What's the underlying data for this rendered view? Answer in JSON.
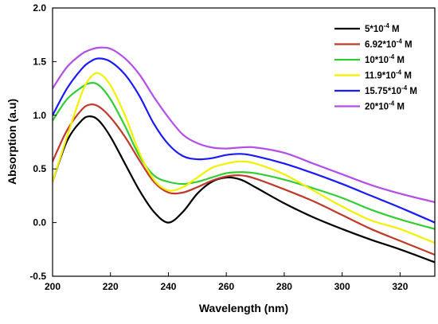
{
  "chart_data": {
    "type": "line",
    "xlabel": "Wavelength (nm)",
    "ylabel": "Absorption (a.u)",
    "xlim": [
      200,
      332
    ],
    "ylim": [
      -0.5,
      2.0
    ],
    "x_ticks": [
      200,
      220,
      240,
      260,
      280,
      300,
      320
    ],
    "y_ticks": [
      -0.5,
      0.0,
      0.5,
      1.0,
      1.5,
      2.0
    ],
    "x_tick_labels": [
      "200",
      "220",
      "240",
      "260",
      "280",
      "300",
      "320"
    ],
    "y_tick_labels": [
      "-0.5",
      "0.0",
      "0.5",
      "1.0",
      "1.5",
      "2.0"
    ],
    "grid": false,
    "legend_position": "top-right",
    "x": [
      200,
      205,
      210,
      213,
      216,
      220,
      225,
      230,
      235,
      240,
      245,
      250,
      255,
      260,
      265,
      270,
      280,
      290,
      300,
      310,
      320,
      332
    ],
    "series": [
      {
        "name_base": "5*10",
        "name_exp": "-4",
        "name_unit": " M",
        "color": "#000000",
        "values": [
          0.38,
          0.76,
          0.95,
          0.99,
          0.95,
          0.8,
          0.55,
          0.3,
          0.1,
          0.0,
          0.1,
          0.27,
          0.38,
          0.42,
          0.4,
          0.33,
          0.18,
          0.05,
          -0.06,
          -0.16,
          -0.25,
          -0.37
        ]
      },
      {
        "name_base": "6.92*10",
        "name_exp": "-4",
        "name_unit": " M",
        "color": "#c0392b",
        "values": [
          0.57,
          0.86,
          1.05,
          1.1,
          1.08,
          0.98,
          0.8,
          0.58,
          0.38,
          0.28,
          0.28,
          0.33,
          0.39,
          0.43,
          0.44,
          0.41,
          0.31,
          0.2,
          0.07,
          -0.06,
          -0.17,
          -0.3
        ]
      },
      {
        "name_base": "10*10",
        "name_exp": "-4",
        "name_unit": " M",
        "color": "#33cc33",
        "values": [
          0.95,
          1.15,
          1.26,
          1.3,
          1.28,
          1.15,
          0.9,
          0.62,
          0.44,
          0.38,
          0.36,
          0.38,
          0.42,
          0.46,
          0.47,
          0.46,
          0.4,
          0.32,
          0.23,
          0.12,
          0.03,
          -0.06
        ]
      },
      {
        "name_base": "11.9*10",
        "name_exp": "-4",
        "name_unit": " M",
        "color": "#f0f000",
        "values": [
          0.38,
          0.8,
          1.2,
          1.35,
          1.39,
          1.28,
          1.0,
          0.65,
          0.4,
          0.3,
          0.33,
          0.42,
          0.51,
          0.55,
          0.57,
          0.55,
          0.45,
          0.3,
          0.15,
          0.02,
          -0.06,
          -0.19
        ]
      },
      {
        "name_base": "15.75*10",
        "name_exp": "-4",
        "name_unit": " M",
        "color": "#1a1aff",
        "values": [
          1.0,
          1.25,
          1.43,
          1.5,
          1.53,
          1.5,
          1.38,
          1.18,
          0.92,
          0.73,
          0.62,
          0.59,
          0.6,
          0.63,
          0.64,
          0.62,
          0.55,
          0.46,
          0.36,
          0.25,
          0.14,
          0.0
        ]
      },
      {
        "name_base": "20*10",
        "name_exp": "-4",
        "name_unit": " M",
        "color": "#b44ee8",
        "values": [
          1.25,
          1.45,
          1.57,
          1.61,
          1.63,
          1.62,
          1.53,
          1.38,
          1.17,
          0.98,
          0.82,
          0.74,
          0.7,
          0.69,
          0.7,
          0.7,
          0.65,
          0.55,
          0.45,
          0.35,
          0.27,
          0.19
        ]
      }
    ]
  }
}
